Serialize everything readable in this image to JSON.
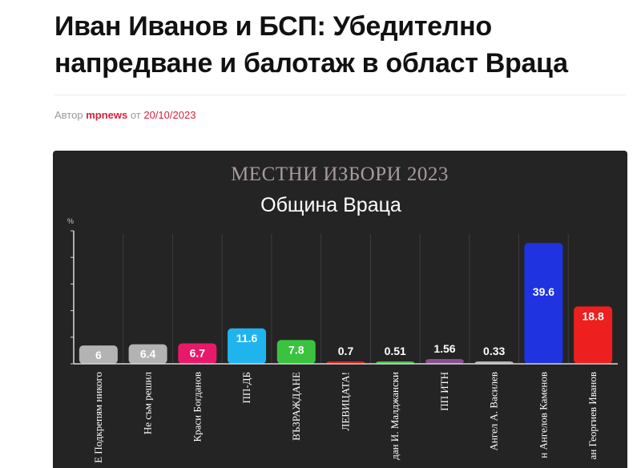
{
  "article": {
    "title": "Иван Иванов и БСП: Убедително напредване и балотаж в област Враца",
    "author_prefix": "Автор",
    "author": "mpnews",
    "date_prefix": "от",
    "date": "20/10/2023"
  },
  "chart_data": {
    "type": "bar",
    "title": "МЕСТНИ ИЗБОРИ 2023",
    "subtitle": "Община Враца",
    "ylabel": "%",
    "xlabel": "",
    "ylim": [
      0,
      42
    ],
    "grid": false,
    "categories": [
      "Е Подкрепям никого",
      "Не съм решил",
      "Краси Богданов",
      "ПП-ДБ",
      "ВЪЗРАЖДАНЕ",
      "ЛЕВИЦАТА!",
      "дан И. Малджански",
      "ПП ИТН",
      "Ангел А. Василев",
      "н Ангелов Каменов",
      "ан Георгиев Иванов"
    ],
    "values": [
      6,
      6.4,
      6.7,
      11.6,
      7.8,
      0.7,
      0.51,
      1.56,
      0.33,
      39.6,
      18.8
    ],
    "value_labels": [
      "6",
      "6.4",
      "6.7",
      "11.6",
      "7.8",
      "0.7",
      "0.51",
      "1.56",
      "0.33",
      "39.6",
      "18.8"
    ],
    "colors": [
      "#b3b3b3",
      "#b3b3b3",
      "#e8196a",
      "#1fb4ee",
      "#39c33e",
      "#e01d1d",
      "#46c04a",
      "#8a4e8e",
      "#b3b3b3",
      "#1f33e0",
      "#ee1f1f"
    ]
  }
}
